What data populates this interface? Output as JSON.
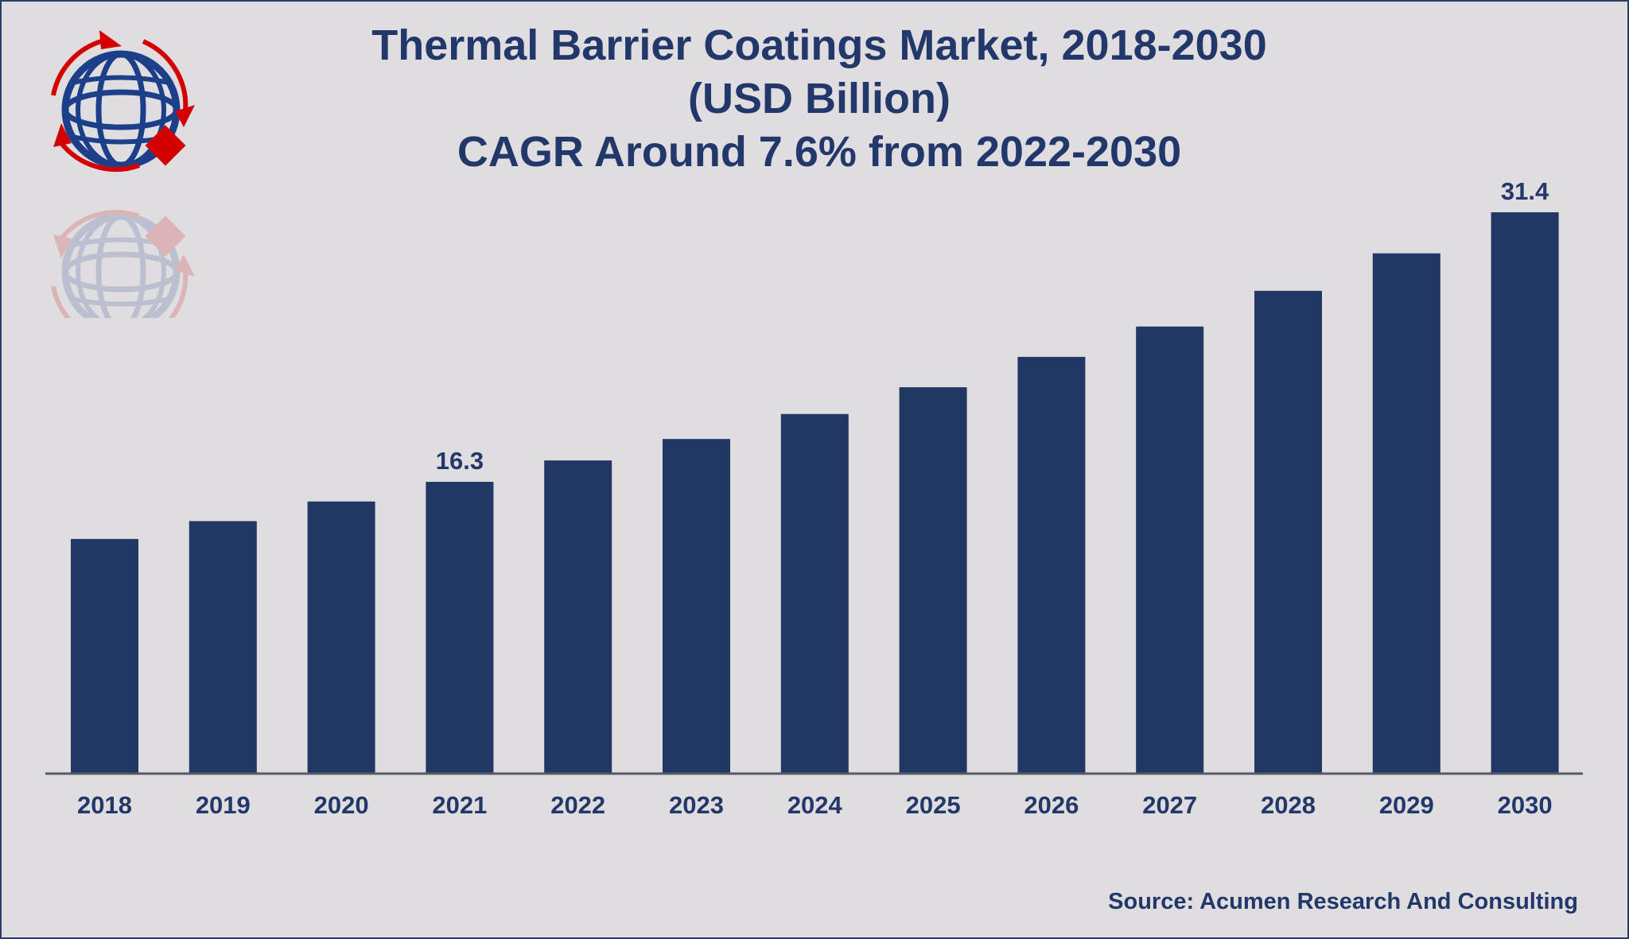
{
  "title_lines": [
    "Thermal Barrier Coatings Market, 2018-2030",
    "(USD Billion)",
    "CAGR Around 7.6% from 2022-2030"
  ],
  "source": "Source: Acumen Research And Consulting",
  "colors": {
    "bar": "#213865",
    "text": "#22376a",
    "logo_blue": "#1d3f8a",
    "logo_red": "#d40000"
  },
  "chart_data": {
    "type": "bar",
    "title": "Thermal Barrier Coatings Market, 2018-2030 (USD Billion) CAGR Around 7.6% from 2022-2030",
    "xlabel": "",
    "ylabel": "USD Billion",
    "categories": [
      "2018",
      "2019",
      "2020",
      "2021",
      "2022",
      "2023",
      "2024",
      "2025",
      "2026",
      "2027",
      "2028",
      "2029",
      "2030"
    ],
    "values": [
      13.1,
      14.1,
      15.2,
      16.3,
      17.5,
      18.7,
      20.1,
      21.6,
      23.3,
      25.0,
      27.0,
      29.1,
      31.4
    ],
    "data_labels": {
      "2021": "16.3",
      "2030": "31.4"
    },
    "ylim": [
      0,
      31.4
    ],
    "grid": false,
    "legend": "none"
  }
}
